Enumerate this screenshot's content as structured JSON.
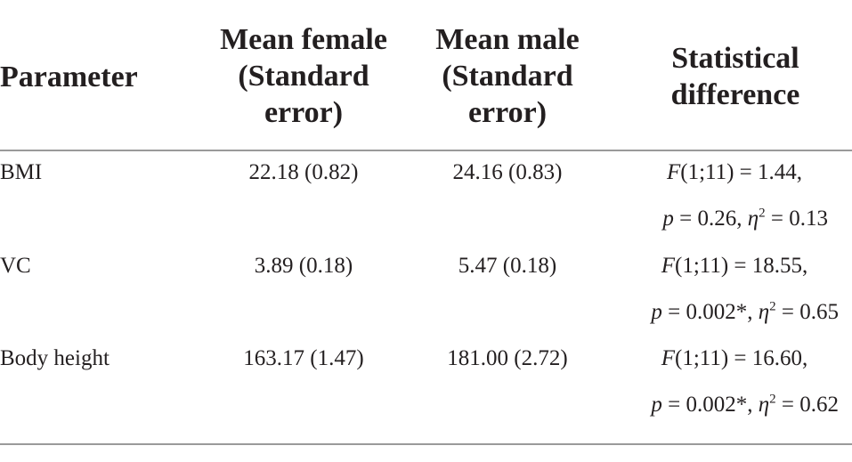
{
  "table": {
    "headers": {
      "parameter": "Parameter",
      "mean_female": [
        "Mean female",
        "(Standard",
        "error)"
      ],
      "mean_male": [
        "Mean male",
        "(Standard",
        "error)"
      ],
      "stat_diff": [
        "Statistical",
        "difference"
      ]
    },
    "rows": [
      {
        "parameter": "BMI",
        "mean_female": "22.18 (0.82)",
        "mean_male": "24.16 (0.83)",
        "stat": {
          "F_letter": "F",
          "F_rest": "(1;11) = 1.44,",
          "p_letter": "p",
          "p_rest": " = 0.26, ",
          "eta": "η",
          "sup": "2",
          "eta_rest": " = 0.13"
        }
      },
      {
        "parameter": "VC",
        "mean_female": "3.89 (0.18)",
        "mean_male": "5.47 (0.18)",
        "stat": {
          "F_letter": "F",
          "F_rest": "(1;11) = 18.55,",
          "p_letter": "p",
          "p_rest": " = 0.002*, ",
          "eta": "η",
          "sup": "2",
          "eta_rest": " = 0.65"
        }
      },
      {
        "parameter": "Body height",
        "mean_female": "163.17 (1.47)",
        "mean_male": "181.00 (2.72)",
        "stat": {
          "F_letter": "F",
          "F_rest": "(1;11) = 16.60,",
          "p_letter": "p",
          "p_rest": " = 0.002*, ",
          "eta": "η",
          "sup": "2",
          "eta_rest": " = 0.62"
        }
      }
    ]
  }
}
